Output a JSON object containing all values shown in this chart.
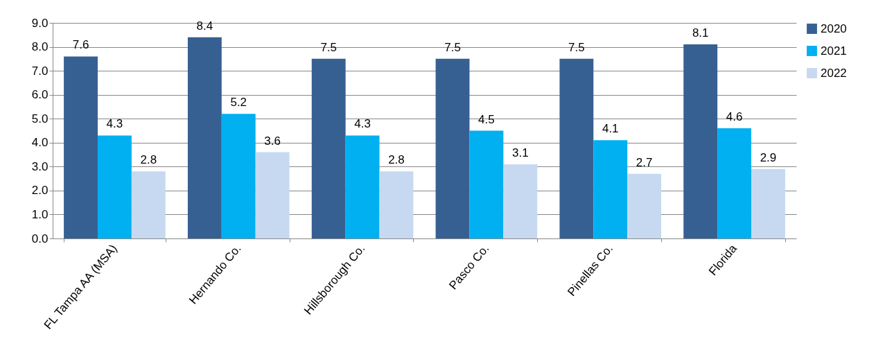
{
  "chart_data": {
    "type": "bar",
    "categories": [
      "FL Tampa AA (MSA)",
      "Hernando Co.",
      "Hillsborough Co.",
      "Pasco Co.",
      "Pinellas Co.",
      "Florida"
    ],
    "series": [
      {
        "name": "2020",
        "color": "#376092",
        "values": [
          7.6,
          8.4,
          7.5,
          7.5,
          7.5,
          8.1
        ]
      },
      {
        "name": "2021",
        "color": "#00b0f0",
        "values": [
          4.3,
          5.2,
          4.3,
          4.5,
          4.1,
          4.6
        ]
      },
      {
        "name": "2022",
        "color": "#c6d9f1",
        "values": [
          2.8,
          3.6,
          2.8,
          3.1,
          2.7,
          2.9
        ]
      }
    ],
    "ylim": [
      0,
      9
    ],
    "yticks": [
      {
        "value": 0,
        "label": "0.0"
      },
      {
        "value": 1,
        "label": "1.0"
      },
      {
        "value": 2,
        "label": "2.0"
      },
      {
        "value": 3,
        "label": "3.0"
      },
      {
        "value": 4,
        "label": "4.0"
      },
      {
        "value": 5,
        "label": "5.0"
      },
      {
        "value": 6,
        "label": "6.0"
      },
      {
        "value": 7,
        "label": "7.0"
      },
      {
        "value": 8,
        "label": "8.0"
      },
      {
        "value": 9,
        "label": "9.0"
      }
    ],
    "grid": "y",
    "legend": "right",
    "data_labels": true
  }
}
